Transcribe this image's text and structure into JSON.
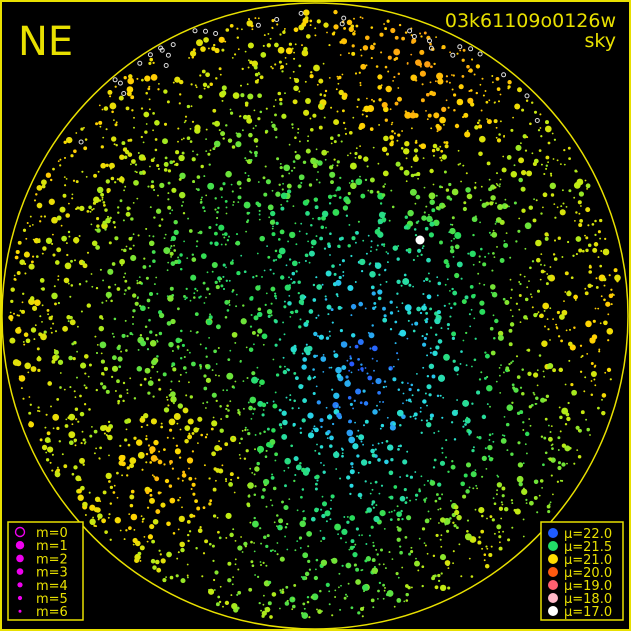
{
  "chart_data": {
    "type": "scatter",
    "title": "NE",
    "image_id_label": "03k61109o0126w",
    "subtitle": "sky",
    "frame_color": "#e8e000",
    "background": "#000000",
    "size_legend": [
      {
        "label": "m=0",
        "mag": 0,
        "style": "ring"
      },
      {
        "label": "m=1",
        "mag": 1
      },
      {
        "label": "m=2",
        "mag": 2
      },
      {
        "label": "m=3",
        "mag": 3
      },
      {
        "label": "m=4",
        "mag": 4
      },
      {
        "label": "m=5",
        "mag": 5
      },
      {
        "label": "m=6",
        "mag": 6
      }
    ],
    "size_legend_color": "#ee00ee",
    "color_legend": [
      {
        "label": "μ=22.0",
        "mu": 22.0,
        "color": "#1f5cff"
      },
      {
        "label": "μ=21.5",
        "mu": 21.5,
        "color": "#22dd66"
      },
      {
        "label": "μ=21.0",
        "mu": 21.0,
        "color": "#ffdd00"
      },
      {
        "label": "μ=20.0",
        "mu": 20.0,
        "color": "#ff5a10"
      },
      {
        "label": "μ=19.0",
        "mu": 19.0,
        "color": "#ff6070"
      },
      {
        "label": "μ=18.0",
        "mu": 18.0,
        "color": "#ffb8c8"
      },
      {
        "label": "μ=17.0",
        "mu": 17.0,
        "color": "#ffffff"
      }
    ]
  }
}
